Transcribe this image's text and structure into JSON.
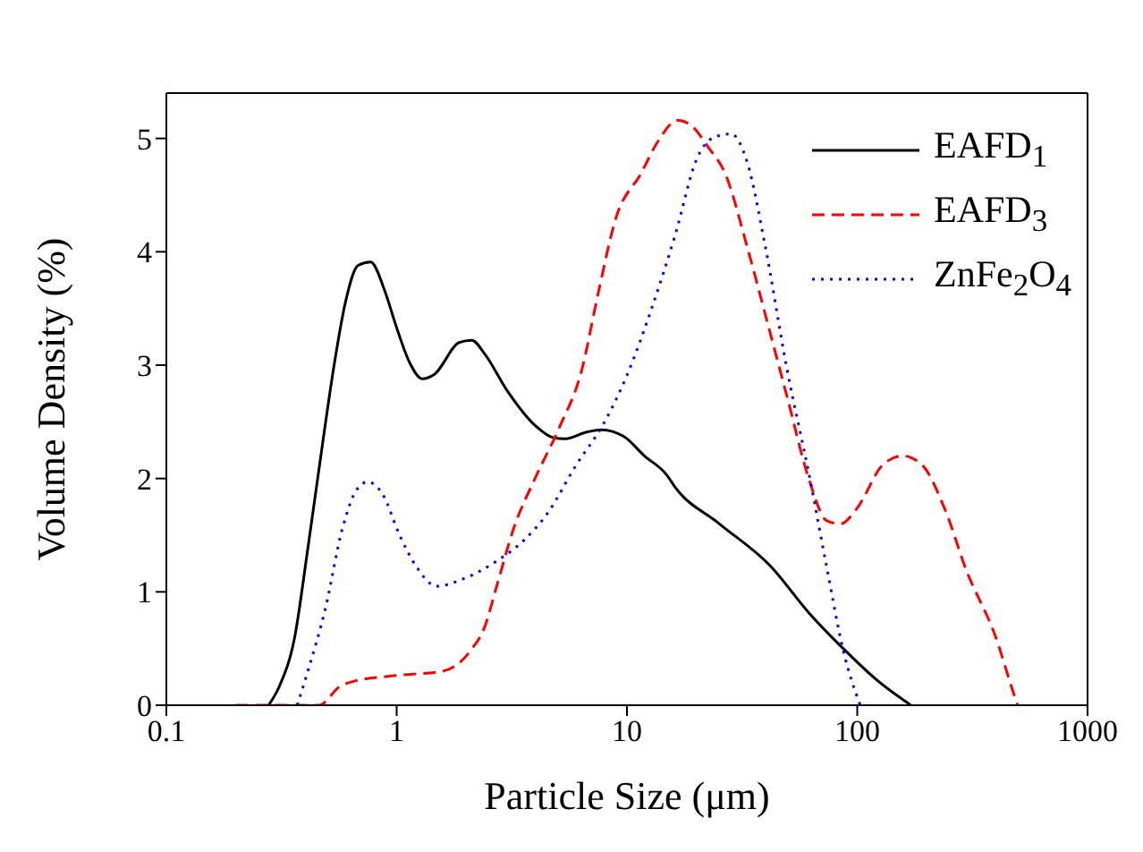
{
  "chart_data": {
    "type": "line",
    "xlabel": "Particle Size (μm)",
    "ylabel": "Volume Density (%)",
    "log": "x",
    "xlim": [
      0.1,
      1000
    ],
    "xticks": [
      0.1,
      1,
      10,
      100,
      1000
    ],
    "ylim": [
      0,
      5.4
    ],
    "yticks": [
      0,
      1,
      2,
      3,
      4,
      5
    ],
    "legend": "top right",
    "marker": "none",
    "series": [
      {
        "name": "EAFD$_{1}$",
        "color": "#000000",
        "line_style": "solid",
        "x": [
          0.278,
          0.31,
          0.36,
          0.41,
          0.48,
          0.535,
          0.6,
          0.68,
          0.77,
          0.89,
          1.0,
          1.14,
          1.29,
          1.46,
          1.87,
          2.12,
          2.41,
          3.03,
          4.03,
          4.78,
          5.35,
          6.7,
          7.74,
          9.7,
          11.9,
          14.9,
          16.1,
          25.2,
          41.9,
          62,
          86.9,
          122,
          171
        ],
        "values": [
          0,
          0.17,
          0.59,
          1.36,
          2.35,
          3.0,
          3.56,
          3.88,
          3.91,
          3.65,
          3.33,
          3.02,
          2.88,
          2.92,
          3.2,
          3.22,
          3.1,
          2.77,
          2.46,
          2.36,
          2.35,
          2.41,
          2.43,
          2.37,
          2.2,
          2.03,
          1.93,
          1.6,
          1.23,
          0.81,
          0.5,
          0.22,
          0
        ]
      },
      {
        "name": "EAFD$_{3}$",
        "color": "#ff0000",
        "line_style": "dashed",
        "x": [
          0.2,
          0.46,
          0.57,
          0.65,
          0.97,
          1.58,
          2.09,
          2.41,
          2.71,
          3.21,
          4.03,
          5.06,
          6.35,
          7.53,
          8.93,
          11.5,
          13.6,
          16.6,
          19.1,
          22.6,
          26.7,
          33.4,
          39.6,
          49.6,
          62,
          73.5,
          84.5,
          100,
          129,
          157,
          191,
          239,
          299,
          396,
          482,
          497
        ],
        "values": [
          0,
          0,
          0.17,
          0.21,
          0.26,
          0.3,
          0.48,
          0.69,
          1.04,
          1.55,
          2.02,
          2.44,
          2.95,
          3.65,
          4.29,
          4.69,
          4.97,
          5.16,
          5.11,
          4.92,
          4.69,
          4.03,
          3.47,
          2.72,
          1.98,
          1.63,
          1.6,
          1.74,
          2.12,
          2.2,
          2.12,
          1.74,
          1.18,
          0.62,
          0.08,
          0
        ]
      },
      {
        "name": "ZnFe$_{2}$O$_{4}$",
        "color": "#0000ff",
        "line_style": "dotted",
        "x": [
          0.37,
          0.41,
          0.49,
          0.58,
          0.67,
          0.75,
          0.87,
          1.03,
          1.22,
          1.49,
          1.92,
          2.71,
          3.59,
          4.51,
          5.98,
          7.95,
          10,
          12.9,
          16.1,
          20.2,
          23.9,
          28.3,
          33.4,
          39.6,
          49.6,
          62,
          73.5,
          87,
          103
        ],
        "values": [
          0,
          0.29,
          0.85,
          1.55,
          1.9,
          1.97,
          1.86,
          1.5,
          1.22,
          1.05,
          1.11,
          1.27,
          1.46,
          1.69,
          2.11,
          2.49,
          2.91,
          3.52,
          4.13,
          4.83,
          5.01,
          5.04,
          4.78,
          4.08,
          2.96,
          2.02,
          1.23,
          0.48,
          0
        ]
      }
    ]
  }
}
